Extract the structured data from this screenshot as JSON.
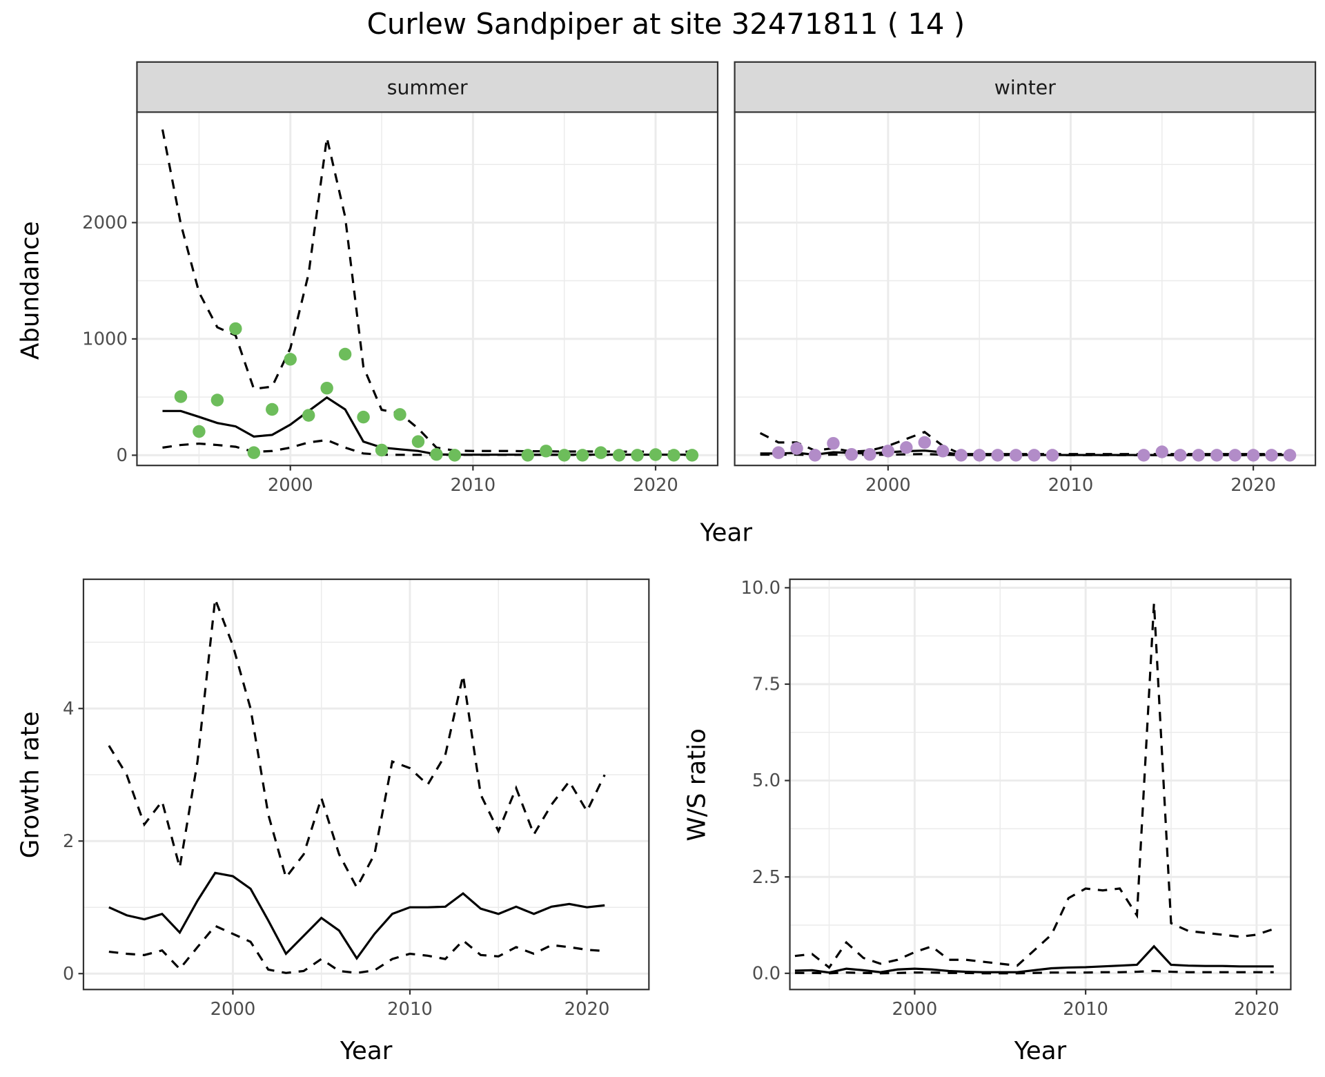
{
  "title": "Curlew Sandpiper at site 32471811 ( 14 )",
  "colors": {
    "summer": "#6dbd5b",
    "winter": "#b28cc8",
    "strip": "#d9d9d9",
    "grid": "#ebebeb"
  },
  "chart_data": [
    {
      "id": "abundance",
      "type": "line",
      "facets": [
        "summer",
        "winter"
      ],
      "xlabel": "Year",
      "ylabel": "Abundance",
      "xlim": [
        1991.6,
        2023.4
      ],
      "ylim": [
        -88,
        2950
      ],
      "xticks": [
        2000,
        2010,
        2020
      ],
      "yticks": [
        0,
        1000,
        2000
      ],
      "summer": {
        "points": {
          "x": [
            1994,
            1995,
            1996,
            1997,
            1998,
            1999,
            2000,
            2001,
            2002,
            2003,
            2004,
            2005,
            2006,
            2007,
            2008,
            2009,
            2013,
            2014,
            2015,
            2016,
            2017,
            2018,
            2019,
            2020,
            2021,
            2022
          ],
          "y": [
            504,
            204,
            474,
            1088,
            22,
            394,
            825,
            343,
            577,
            869,
            328,
            44,
            350,
            117,
            7,
            0,
            0,
            36,
            0,
            0,
            22,
            0,
            0,
            5,
            0,
            0
          ]
        },
        "x": [
          1993,
          1994,
          1995,
          1996,
          1997,
          1998,
          1999,
          2000,
          2001,
          2002,
          2003,
          2004,
          2005,
          2006,
          2007,
          2008,
          2009,
          2010,
          2011,
          2012,
          2013,
          2014,
          2015,
          2016,
          2017,
          2018,
          2019,
          2020,
          2021,
          2022
        ],
        "mean": [
          380,
          380,
          330,
          277,
          248,
          160,
          175,
          263,
          380,
          496,
          394,
          117,
          66,
          51,
          37,
          7,
          5,
          5,
          5,
          5,
          5,
          5,
          5,
          5,
          5,
          5,
          5,
          5,
          5,
          5
        ],
        "upper": [
          2800,
          1990,
          1400,
          1100,
          1030,
          570,
          590,
          920,
          1560,
          2730,
          2050,
          760,
          390,
          360,
          230,
          65,
          40,
          36,
          36,
          36,
          34,
          34,
          32,
          32,
          32,
          30,
          30,
          30,
          30,
          30
        ],
        "lower": [
          65,
          88,
          100,
          88,
          73,
          29,
          36,
          65,
          110,
          130,
          65,
          15,
          5,
          3,
          3,
          3,
          3,
          3,
          3,
          3,
          3,
          3,
          3,
          3,
          3,
          3,
          3,
          3,
          3,
          3
        ]
      },
      "winter": {
        "points": {
          "x": [
            1994,
            1995,
            1996,
            1997,
            1998,
            1999,
            2000,
            2001,
            2002,
            2003,
            2004,
            2005,
            2006,
            2007,
            2008,
            2009,
            2014,
            2015,
            2016,
            2017,
            2018,
            2019,
            2020,
            2021,
            2022
          ],
          "y": [
            22,
            58,
            0,
            102,
            7,
            7,
            36,
            66,
            110,
            36,
            0,
            0,
            0,
            0,
            0,
            0,
            0,
            29,
            0,
            0,
            0,
            0,
            0,
            0,
            0
          ]
        },
        "x": [
          1993,
          1994,
          1995,
          1996,
          1997,
          1998,
          1999,
          2000,
          2001,
          2002,
          2003,
          2004,
          2005,
          2006,
          2007,
          2008,
          2009,
          2010,
          2011,
          2012,
          2013,
          2014,
          2015,
          2016,
          2017,
          2018,
          2019,
          2020,
          2021,
          2022
        ],
        "mean": [
          15,
          15,
          20,
          5,
          25,
          20,
          15,
          25,
          35,
          40,
          25,
          5,
          2,
          2,
          2,
          2,
          2,
          2,
          2,
          2,
          2,
          2,
          2,
          2,
          2,
          2,
          2,
          2,
          2,
          2
        ],
        "upper": [
          190,
          110,
          110,
          40,
          60,
          30,
          40,
          80,
          140,
          200,
          80,
          10,
          10,
          10,
          10,
          10,
          10,
          10,
          10,
          10,
          10,
          10,
          10,
          10,
          10,
          10,
          10,
          10,
          10,
          10
        ],
        "lower": [
          5,
          5,
          5,
          2,
          5,
          5,
          3,
          5,
          8,
          10,
          5,
          1,
          1,
          1,
          1,
          1,
          1,
          1,
          1,
          1,
          1,
          1,
          1,
          1,
          1,
          1,
          1,
          1,
          1,
          1
        ]
      }
    },
    {
      "id": "growth",
      "type": "line",
      "xlabel": "Year",
      "ylabel": "Growth rate",
      "xlim": [
        1991.56,
        2023.5
      ],
      "ylim": [
        -0.24,
        5.95
      ],
      "xticks": [
        2000,
        2010,
        2020
      ],
      "yticks": [
        0,
        2,
        4
      ],
      "x": [
        1993,
        1994,
        1995,
        1996,
        1997,
        1998,
        1999,
        2000,
        2001,
        2002,
        2003,
        2004,
        2005,
        2006,
        2007,
        2008,
        2009,
        2010,
        2011,
        2012,
        2013,
        2014,
        2015,
        2016,
        2017,
        2018,
        2019,
        2020,
        2021
      ],
      "mean": [
        1.0,
        0.88,
        0.82,
        0.9,
        0.62,
        1.1,
        1.52,
        1.47,
        1.28,
        0.8,
        0.3,
        0.57,
        0.84,
        0.65,
        0.23,
        0.6,
        0.9,
        1.0,
        1.0,
        1.01,
        1.21,
        0.98,
        0.9,
        1.01,
        0.9,
        1.01,
        1.05,
        1.0,
        1.03
      ],
      "upper": [
        3.44,
        3.0,
        2.25,
        2.6,
        1.6,
        3.2,
        5.65,
        4.95,
        4.0,
        2.4,
        1.45,
        1.8,
        2.65,
        1.8,
        1.3,
        1.8,
        3.2,
        3.1,
        2.85,
        3.3,
        4.5,
        2.7,
        2.15,
        2.8,
        2.1,
        2.55,
        2.9,
        2.45,
        3.0
      ],
      "lower": [
        0.33,
        0.3,
        0.28,
        0.35,
        0.07,
        0.4,
        0.72,
        0.6,
        0.48,
        0.06,
        0.01,
        0.04,
        0.22,
        0.04,
        0.01,
        0.05,
        0.22,
        0.3,
        0.27,
        0.22,
        0.5,
        0.28,
        0.26,
        0.4,
        0.3,
        0.43,
        0.4,
        0.36,
        0.34
      ]
    },
    {
      "id": "ratio",
      "type": "line",
      "xlabel": "Year",
      "ylabel": "W/S ratio",
      "xlim": [
        1992.7,
        2022.0
      ],
      "ylim": [
        -0.42,
        10.22
      ],
      "xticks": [
        2000,
        2010,
        2020
      ],
      "yticks": [
        0,
        2.5,
        5,
        7.5,
        10
      ],
      "ytick_labels": [
        "0.0",
        "2.5",
        "5.0",
        "7.5",
        "10.0"
      ],
      "x": [
        1993,
        1994,
        1995,
        1996,
        1997,
        1998,
        1999,
        2000,
        2001,
        2002,
        2003,
        2004,
        2005,
        2006,
        2007,
        2008,
        2009,
        2010,
        2011,
        2012,
        2013,
        2014,
        2015,
        2016,
        2017,
        2018,
        2019,
        2020,
        2021
      ],
      "mean": [
        0.07,
        0.08,
        0.02,
        0.12,
        0.08,
        0.03,
        0.1,
        0.12,
        0.1,
        0.06,
        0.04,
        0.03,
        0.03,
        0.03,
        0.08,
        0.13,
        0.15,
        0.16,
        0.18,
        0.2,
        0.22,
        0.7,
        0.22,
        0.2,
        0.19,
        0.19,
        0.18,
        0.18,
        0.18
      ],
      "upper": [
        0.45,
        0.5,
        0.15,
        0.8,
        0.4,
        0.25,
        0.35,
        0.55,
        0.7,
        0.35,
        0.35,
        0.3,
        0.25,
        0.2,
        0.6,
        1.0,
        1.95,
        2.2,
        2.15,
        2.2,
        1.5,
        9.6,
        1.3,
        1.1,
        1.05,
        1.0,
        0.95,
        1.0,
        1.15
      ],
      "lower": [
        0.01,
        0.01,
        0.0,
        0.02,
        0.01,
        0.0,
        0.01,
        0.02,
        0.02,
        0.01,
        0.01,
        0.0,
        0.0,
        0.0,
        0.01,
        0.02,
        0.02,
        0.02,
        0.03,
        0.03,
        0.04,
        0.06,
        0.04,
        0.03,
        0.03,
        0.03,
        0.03,
        0.03,
        0.03
      ]
    }
  ]
}
